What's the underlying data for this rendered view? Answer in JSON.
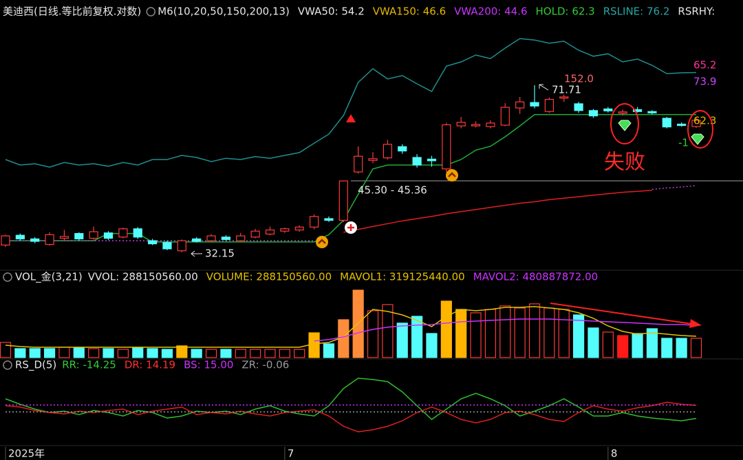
{
  "chart_data": [
    {
      "type": "candlestick",
      "title": "美迪西(日线.等比前复权.对数)",
      "indicator": "M6(10,20,50,150,200,13)",
      "legend": [
        {
          "text": "VWA50: 54.2",
          "color": "#e6e6e6"
        },
        {
          "text": "VWA150: 46.6",
          "color": "#e6b800"
        },
        {
          "text": "VWA200: 44.6",
          "color": "#cc33ff"
        },
        {
          "text": "HOLD: 62.3",
          "color": "#33cc33"
        },
        {
          "text": "RSLINE: 76.2",
          "color": "#2aa5a5"
        },
        {
          "text": "RSRHY:",
          "color": "#e6e6e6"
        }
      ],
      "annotations": [
        "152.0",
        "71.71",
        "45.30 - 45.36",
        "32.15",
        "65.2",
        "73.9",
        "62.3",
        "-1",
        "失败"
      ],
      "log": true,
      "ylim": [
        30.3,
        94.6
      ],
      "up_color": "#ff3b3b",
      "down_color": "#54fcfc",
      "categories": [
        "2025年",
        null,
        null,
        null,
        null,
        null,
        null,
        null,
        null,
        null,
        null,
        null,
        null,
        null,
        null,
        null,
        null,
        null,
        null,
        "7",
        null,
        null,
        null,
        null,
        null,
        null,
        null,
        null,
        null,
        null,
        null,
        null,
        null,
        null,
        null,
        null,
        null,
        null,
        null,
        null,
        null,
        "8",
        null,
        null,
        null,
        null,
        null,
        null
      ],
      "open": [
        33.3,
        34.9,
        34.3,
        33.4,
        34.4,
        35.2,
        34.4,
        35.3,
        34.6,
        36.0,
        34.0,
        33.7,
        32.4,
        34.3,
        34.0,
        34.6,
        34.0,
        34.6,
        35.1,
        35.6,
        35.8,
        36.3,
        37.8,
        37.5,
        47.3,
        50.0,
        50.6,
        53.4,
        50.7,
        50.3,
        48.0,
        59.0,
        59.0,
        58.8,
        59.2,
        64.3,
        66.0,
        63.2,
        67.4,
        65.6,
        63.5,
        64.0,
        62.7,
        63.8,
        63.2,
        61.2,
        59.5,
        58.8
      ],
      "high": [
        35.0,
        35.2,
        34.6,
        35.4,
        35.8,
        35.4,
        36.4,
        35.6,
        36.2,
        36.3,
        34.3,
        34.0,
        34.2,
        34.6,
        35.1,
        34.9,
        35.3,
        36.0,
        36.4,
        36.2,
        36.6,
        38.6,
        38.2,
        45.36,
        53.5,
        52.0,
        55.2,
        54.0,
        51.5,
        51.1,
        59.9,
        61.6,
        60.3,
        60.6,
        65.8,
        67.8,
        71.71,
        67.6,
        68.5,
        66.2,
        64.0,
        64.6,
        63.8,
        64.6,
        63.6,
        61.6,
        60.0,
        61.3
      ],
      "low": [
        33.0,
        34.0,
        33.6,
        33.2,
        34.1,
        34.0,
        34.2,
        34.1,
        34.4,
        34.3,
        33.3,
        32.5,
        32.15,
        33.7,
        33.8,
        34.0,
        33.8,
        34.4,
        34.9,
        35.3,
        35.5,
        35.9,
        37.2,
        37.2,
        46.9,
        49.3,
        50.2,
        51.6,
        48.3,
        48.5,
        47.2,
        58.3,
        58.6,
        58.3,
        58.9,
        62.5,
        64.2,
        62.8,
        66.2,
        62.8,
        61.3,
        62.9,
        62.0,
        62.9,
        62.4,
        58.3,
        58.8,
        58.4
      ],
      "close": [
        34.8,
        34.3,
        33.9,
        35.0,
        34.7,
        34.3,
        35.5,
        34.4,
        36.0,
        34.6,
        33.5,
        32.7,
        34.0,
        33.9,
        34.8,
        34.2,
        34.8,
        35.6,
        35.8,
        36.0,
        36.3,
        38.2,
        37.5,
        45.3,
        51.0,
        50.4,
        54.0,
        52.3,
        48.9,
        49.9,
        59.3,
        60.0,
        59.4,
        59.8,
        64.5,
        66.2,
        64.9,
        67.0,
        67.8,
        63.5,
        61.9,
        63.4,
        63.1,
        63.2,
        62.8,
        58.7,
        59.1,
        60.6
      ],
      "series": [
        {
          "color": "#1f8f8f",
          "dashed": false,
          "values": [
            50.2,
            48.9,
            49.2,
            48.4,
            49.5,
            48.9,
            49.2,
            48.6,
            49.5,
            48.9,
            50.2,
            50.2,
            51.2,
            50.7,
            49.7,
            50.5,
            50.2,
            50.9,
            50.5,
            51.2,
            51.9,
            54.3,
            56.7,
            62.0,
            72.7,
            77.6,
            73.9,
            75.1,
            72.2,
            69.6,
            78.6,
            80.2,
            82.9,
            81.5,
            85.7,
            89.7,
            89.1,
            87.7,
            88.6,
            84.8,
            82.4,
            83.4,
            80.2,
            81.3,
            78.9,
            75.8,
            76.1,
            76.2
          ]
        },
        {
          "color": "#1fae3a",
          "dashed": false,
          "values": [
            34.0,
            34.0,
            34.0,
            34.0,
            34.0,
            34.0,
            34.0,
            35.2,
            35.2,
            35.2,
            33.8,
            33.8,
            33.8,
            33.8,
            33.8,
            33.8,
            33.8,
            33.8,
            33.8,
            33.8,
            33.8,
            33.8,
            35.0,
            37.5,
            42.5,
            48.0,
            48.9,
            48.9,
            48.9,
            48.9,
            48.9,
            50.2,
            52.5,
            53.5,
            56.0,
            59.0,
            62.3,
            62.3,
            62.3,
            62.3,
            62.3,
            62.3,
            62.3,
            62.3,
            62.3,
            62.3,
            62.3,
            62.3
          ]
        },
        {
          "color": "#e02020",
          "dashed": false,
          "values": [
            null,
            null,
            null,
            null,
            null,
            null,
            null,
            null,
            null,
            null,
            null,
            null,
            null,
            null,
            null,
            null,
            null,
            null,
            null,
            null,
            null,
            null,
            null,
            35.4,
            35.9,
            36.4,
            36.9,
            37.4,
            37.8,
            38.2,
            38.7,
            39.1,
            39.5,
            39.9,
            40.3,
            40.7,
            41.0,
            41.4,
            41.7,
            42.0,
            42.3,
            42.6,
            42.9,
            43.1,
            43.3,
            null,
            null,
            null
          ]
        },
        {
          "color": "#c040e0",
          "dashed": true,
          "values": [
            34.0,
            34.0,
            34.0,
            34.0,
            34.0,
            34.0,
            34.0,
            34.0,
            34.0,
            34.0,
            34.0,
            34.0,
            34.0,
            34.0,
            34.0,
            34.0,
            34.0,
            34.0,
            34.0,
            34.0,
            34.0,
            34.0,
            null,
            null,
            null,
            null,
            null,
            null,
            null,
            null,
            null,
            null,
            null,
            null,
            null,
            null,
            null,
            null,
            null,
            null,
            null,
            null,
            null,
            null,
            43.5,
            43.8,
            44.0,
            44.3
          ]
        }
      ]
    },
    {
      "type": "bar",
      "title": "VOL_金(3,21)",
      "legend": [
        {
          "text": "VVOL: 288150560.00",
          "color": "#e6e6e6"
        },
        {
          "text": "VOLUME: 288150560.00",
          "color": "#e6c200"
        },
        {
          "text": "MAVOL1: 319125440.00",
          "color": "#e6c200"
        },
        {
          "text": "MAVOL2: 480887872.00",
          "color": "#cc33ff"
        }
      ],
      "ylim": [
        0,
        1090000000
      ],
      "values": [
        226000000,
        134000000,
        134000000,
        134000000,
        154000000,
        154000000,
        134000000,
        134000000,
        123000000,
        154000000,
        134000000,
        123000000,
        175000000,
        123000000,
        123000000,
        123000000,
        123000000,
        123000000,
        123000000,
        123000000,
        123000000,
        370000000,
        206000000,
        566000000,
        1008000000,
        700000000,
        792000000,
        515000000,
        617000000,
        360000000,
        844000000,
        720000000,
        669000000,
        720000000,
        772000000,
        741000000,
        803000000,
        741000000,
        720000000,
        638000000,
        443000000,
        381000000,
        329000000,
        360000000,
        432000000,
        288000000,
        288000000,
        288150560
      ],
      "bar_styles": [
        "up",
        "down",
        "down",
        "down",
        "up",
        "down",
        "up",
        "down",
        "up",
        "down",
        "down",
        "down",
        "gold",
        "down",
        "up",
        "down",
        "up",
        "up",
        "up",
        "up",
        "up",
        "gold",
        "down",
        "orange",
        "orange",
        "up",
        "up",
        "down",
        "down",
        "down",
        "gold",
        "gold",
        "up",
        "up",
        "up",
        "up",
        "up",
        "up",
        "up",
        "down",
        "down",
        "up",
        "up-solid",
        "down",
        "down",
        "down",
        "down",
        "up"
      ],
      "style_colors": {
        "up": [
          "#000000",
          "#ff3b3b"
        ],
        "down": [
          "#54fcfc",
          "#54fcfc"
        ],
        "gold": [
          "#ffb400",
          "#ffb400"
        ],
        "orange": [
          "#ff8c3a",
          "#ff8c3a"
        ],
        "up-solid": [
          "#ff1a1a",
          "#ff1a1a"
        ]
      },
      "series": [
        {
          "color": "#e6c200",
          "dashed": false,
          "values": [
            185000000,
            165000000,
            154000000,
            154000000,
            154000000,
            154000000,
            154000000,
            154000000,
            154000000,
            154000000,
            154000000,
            154000000,
            154000000,
            154000000,
            154000000,
            154000000,
            154000000,
            154000000,
            154000000,
            154000000,
            154000000,
            206000000,
            226000000,
            309000000,
            515000000,
            720000000,
            690000000,
            638000000,
            556000000,
            463000000,
            617000000,
            720000000,
            700000000,
            720000000,
            751000000,
            751000000,
            762000000,
            741000000,
            720000000,
            669000000,
            587000000,
            473000000,
            391000000,
            350000000,
            370000000,
            350000000,
            329000000,
            319125440
          ]
        },
        {
          "color": "#cc33ff",
          "dashed": false,
          "values": [
            null,
            null,
            null,
            null,
            null,
            null,
            null,
            null,
            null,
            null,
            null,
            null,
            null,
            null,
            null,
            null,
            null,
            null,
            null,
            null,
            null,
            247000000,
            268000000,
            309000000,
            370000000,
            422000000,
            453000000,
            473000000,
            484000000,
            494000000,
            515000000,
            535000000,
            545000000,
            556000000,
            566000000,
            576000000,
            576000000,
            576000000,
            566000000,
            556000000,
            545000000,
            535000000,
            525000000,
            515000000,
            504000000,
            494000000,
            494000000,
            480887872
          ]
        }
      ]
    },
    {
      "type": "line",
      "title": "RS_D(5)",
      "legend": [
        {
          "text": "RR: -14.25",
          "color": "#33cc33"
        },
        {
          "text": "DR: 14.19",
          "color": "#ff3030"
        },
        {
          "text": "BS: 15.00",
          "color": "#cc33ff"
        },
        {
          "text": "ZR: -0.06",
          "color": "#9a9a9a"
        }
      ],
      "ylim": [
        -69,
        81
      ],
      "series": [
        {
          "color": "#2fbf2f",
          "dashed": false,
          "values": [
            28.5,
            16.5,
            6,
            -1.5,
            1.5,
            -6,
            3,
            -1.5,
            -9,
            3,
            -1.5,
            -13.5,
            -9,
            1.5,
            -1.5,
            1.5,
            -6,
            6,
            13.5,
            1.5,
            -4.5,
            -9,
            13.5,
            51,
            73.5,
            70.5,
            66,
            43.5,
            13.5,
            -16.5,
            6,
            28.5,
            40.5,
            28.5,
            13.5,
            -9,
            1.5,
            13.5,
            28.5,
            10.5,
            -9,
            -9,
            -1.5,
            -9,
            -13.5,
            -16.5,
            -19.5,
            -14.25
          ]
        },
        {
          "color": "#e02020",
          "dashed": false,
          "values": [
            13.5,
            10.5,
            3,
            -1.5,
            -4.5,
            1.5,
            -1.5,
            3,
            6,
            -6,
            1.5,
            6,
            10.5,
            -6,
            -1.5,
            -4.5,
            1.5,
            -4.5,
            -9,
            -1.5,
            1.5,
            4.5,
            -9,
            -31.5,
            -43.5,
            -39,
            -31.5,
            -19.5,
            -1.5,
            10.5,
            -1.5,
            -16.5,
            -24,
            -16.5,
            -1.5,
            1.5,
            -6,
            -16.5,
            -21,
            -1.5,
            13.5,
            6,
            1.5,
            9,
            13.5,
            21,
            16.5,
            14.19
          ]
        },
        {
          "color": "#cc33ff",
          "dashed": true,
          "values": [
            15,
            15,
            15,
            15,
            15,
            15,
            15,
            15,
            15,
            15,
            15,
            15,
            15,
            15,
            15,
            15,
            15,
            15,
            15,
            15,
            15,
            15,
            15,
            15,
            15,
            15,
            15,
            15,
            15,
            15,
            15,
            15,
            15,
            15,
            15,
            15,
            15,
            15,
            15,
            15,
            15,
            15,
            15,
            15,
            15,
            15,
            15,
            15
          ]
        },
        {
          "color": "#9a9a9a",
          "dashed": true,
          "values": [
            -0.06,
            -0.06,
            -0.06,
            -0.06,
            -0.06,
            -0.06,
            -0.06,
            -0.06,
            -0.06,
            -0.06,
            -0.06,
            -0.06,
            -0.06,
            -0.06,
            -0.06,
            -0.06,
            -0.06,
            -0.06,
            -0.06,
            -0.06,
            -0.06,
            -0.06,
            -0.06,
            -0.06,
            -0.06,
            -0.06,
            -0.06,
            -0.06,
            -0.06,
            -0.06,
            -0.06,
            -0.06,
            -0.06,
            -0.06,
            -0.06,
            -0.06,
            -0.06,
            -0.06,
            -0.06,
            -0.06,
            -0.06,
            -0.06,
            -0.06,
            -0.06,
            -0.06,
            -0.06,
            -0.06,
            -0.06
          ]
        }
      ]
    }
  ]
}
